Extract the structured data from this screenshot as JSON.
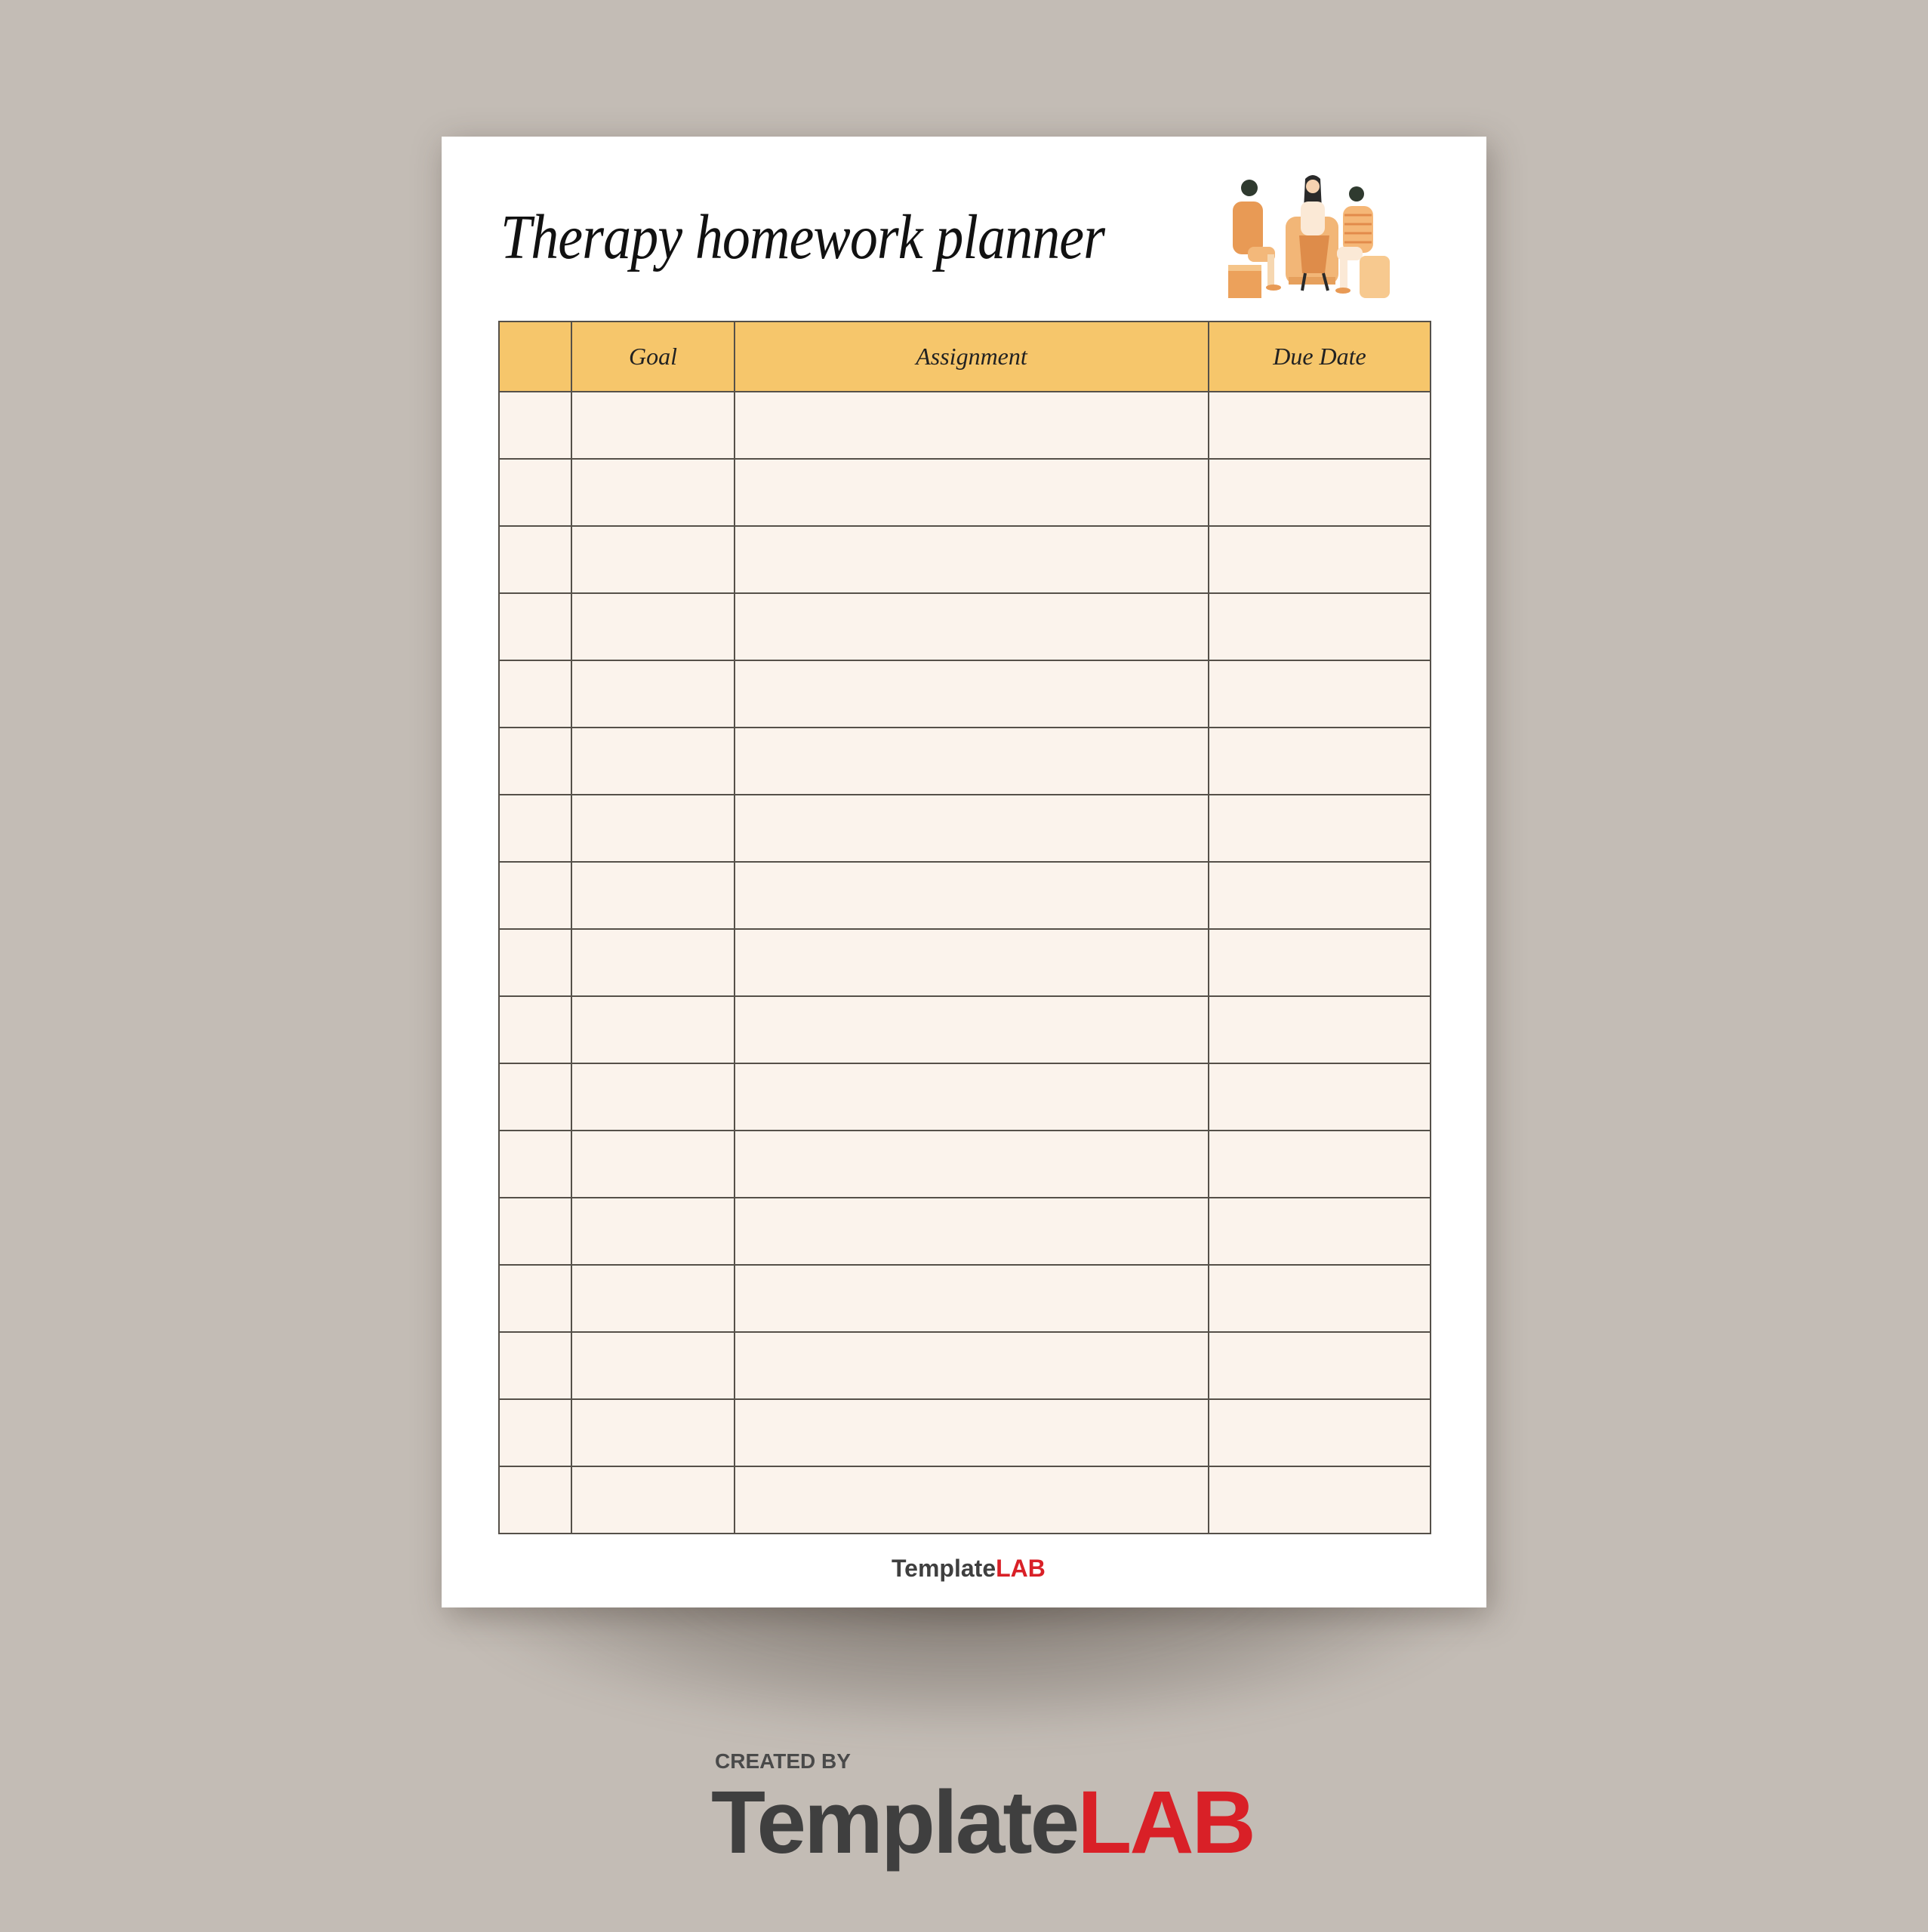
{
  "document": {
    "title": "Therapy homework planner",
    "table": {
      "columns": [
        "",
        "Goal",
        "Assignment",
        "Due Date"
      ],
      "row_count": 17
    },
    "footer_logo": {
      "part1": "Template",
      "part2": "LAB"
    }
  },
  "branding": {
    "created_by": "CREATED BY",
    "logo_part1": "Template",
    "logo_part2": "LAB"
  },
  "colors": {
    "background": "#c3bcb5",
    "header_fill": "#f6c66b",
    "row_fill": "#fbf3ec",
    "brand_red": "#d92027",
    "brand_dark": "#3f3f3f"
  }
}
